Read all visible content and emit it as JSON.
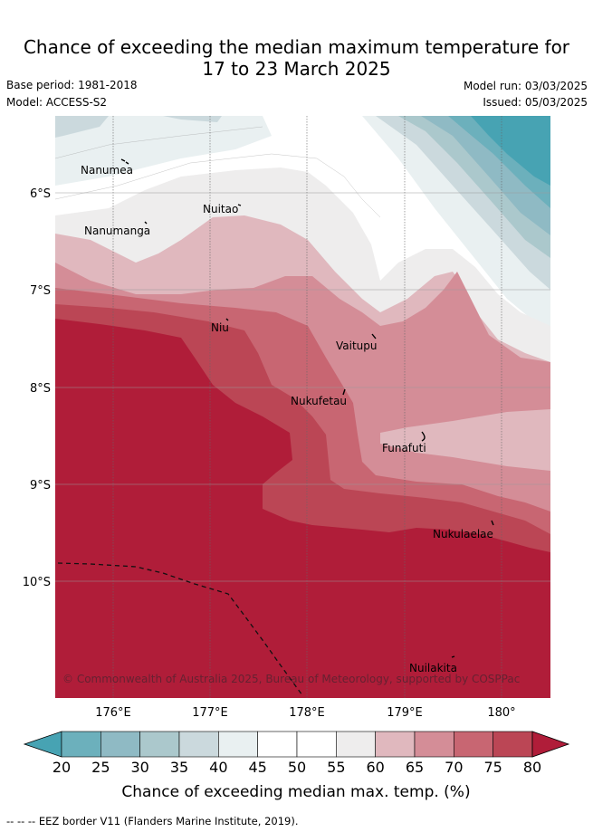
{
  "header": {
    "title_line1": "Chance of exceeding the median maximum temperature for",
    "title_line2": "17 to 23 March 2025",
    "base_period": "Base period: 1981-2018",
    "model": "Model: ACCESS-S2",
    "model_run": "Model run: 03/03/2025",
    "issued": "Issued: 05/03/2025"
  },
  "map": {
    "lat_labels": [
      "6°S",
      "7°S",
      "8°S",
      "9°S",
      "10°S"
    ],
    "lon_labels": [
      "176°E",
      "177°E",
      "178°E",
      "179°E",
      "180°"
    ],
    "places": [
      "Nanumea",
      "Nanumanga",
      "Nuitao",
      "Niu",
      "Vaitupu",
      "Nukufetau",
      "Funafuti",
      "Nukulaelae",
      "Nuilakita"
    ],
    "copyright": "© Commonwealth of Australia 2025, Bureau of Meteorology, supported by COSPPac"
  },
  "colorbar": {
    "ticks": [
      "20",
      "25",
      "30",
      "35",
      "40",
      "45",
      "50",
      "55",
      "60",
      "65",
      "70",
      "75",
      "80"
    ],
    "colors": [
      "#47a3b3",
      "#6cb0bc",
      "#8fbac4",
      "#abc8cc",
      "#cbd9dd",
      "#e9f0f1",
      "#ffffff",
      "#ffffff",
      "#eeeded",
      "#e0b8be",
      "#d48d97",
      "#c86672",
      "#bb4655",
      "#b01d39"
    ],
    "label": "Chance of exceeding median max. temp. (%)"
  },
  "footer": "-- -- -- EEZ border V11 (Flanders Marine Institute, 2019)."
}
